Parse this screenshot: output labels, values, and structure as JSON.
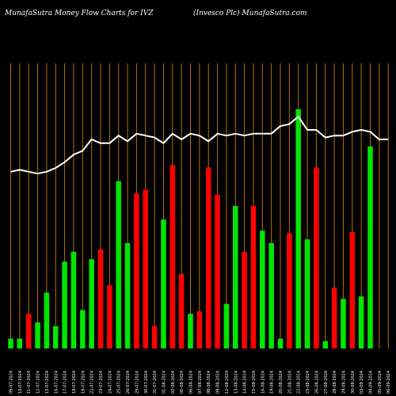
{
  "header": {
    "left_title": "MunafaSutra  Money Flow  Charts for IVZ",
    "right_title": "(Invesco  Plc) MunafaSutra.com"
  },
  "colors": {
    "background": "#000000",
    "gridline": "#b8720a",
    "up": "#00e600",
    "down": "#ff0000",
    "price_line": "#ffffff",
    "label": "#ffffff"
  },
  "chart_data": {
    "type": "bar",
    "title": "",
    "xlabel": "",
    "ylabel": "",
    "grid": true,
    "grid_orientation": "vertical",
    "categories": [
      "09-07-2024",
      "10-07-2024",
      "11-07-2024",
      "12-07-2024",
      "15-07-2024",
      "16-07-2024",
      "17-07-2024",
      "18-07-2024",
      "19-07-2024",
      "22-07-2024",
      "23-07-2024",
      "24-07-2024",
      "25-07-2024",
      "26-07-2024",
      "29-07-2024",
      "30-07-2024",
      "31-07-2024",
      "01-08-2024",
      "02-08-2024",
      "05-08-2024",
      "06-08-2024",
      "07-08-2024",
      "08-08-2024",
      "09-08-2024",
      "12-08-2024",
      "13-08-2024",
      "14-08-2024",
      "15-08-2024",
      "16-08-2024",
      "19-08-2024",
      "20-08-2024",
      "21-08-2024",
      "22-08-2024",
      "23-08-2024",
      "26-08-2024",
      "27-08-2024",
      "28-08-2024",
      "29-08-2024",
      "30-08-2024",
      "03-09-2024",
      "04-09-2024",
      "05-09-2024",
      "06-09-2024"
    ],
    "flow_direction": [
      "up",
      "up",
      "down",
      "up",
      "up",
      "up",
      "up",
      "up",
      "up",
      "up",
      "down",
      "down",
      "up",
      "up",
      "down",
      "down",
      "down",
      "up",
      "down",
      "down",
      "up",
      "down",
      "down",
      "down",
      "up",
      "up",
      "down",
      "down",
      "up",
      "up",
      "up",
      "down",
      "up",
      "up",
      "down",
      "up",
      "down",
      "up",
      "down",
      "up",
      "up",
      "down",
      "down"
    ],
    "money_flow": [
      8,
      8,
      28,
      21,
      45,
      18,
      70,
      78,
      31,
      72,
      80,
      51,
      135,
      85,
      125,
      128,
      18,
      104,
      148,
      60,
      28,
      30,
      146,
      124,
      36,
      115,
      78,
      115,
      95,
      85,
      8,
      93,
      193,
      88,
      146,
      6,
      49,
      40,
      94,
      42,
      163,
      0,
      0
    ],
    "price": [
      16.93,
      16.94,
      16.93,
      16.92,
      16.93,
      16.95,
      16.98,
      17.02,
      17.04,
      17.1,
      17.08,
      17.08,
      17.12,
      17.09,
      17.13,
      17.12,
      17.11,
      17.08,
      17.13,
      17.1,
      17.13,
      17.12,
      17.09,
      17.13,
      17.12,
      17.13,
      17.12,
      17.13,
      17.13,
      17.13,
      17.17,
      17.18,
      17.22,
      17.15,
      17.15,
      17.11,
      17.12,
      17.12,
      17.14,
      17.15,
      17.14,
      17.1,
      17.1
    ],
    "price_range": [
      16.0,
      17.5
    ],
    "money_flow_range": [
      0,
      230
    ]
  }
}
